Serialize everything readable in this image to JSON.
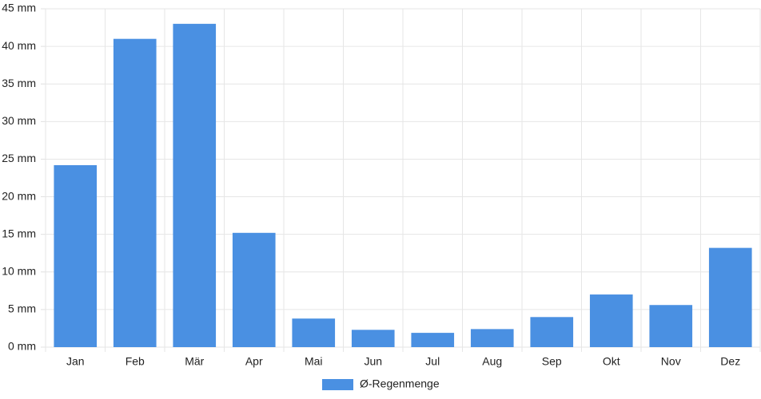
{
  "chart_data": {
    "type": "bar",
    "categories": [
      "Jan",
      "Feb",
      "Mär",
      "Apr",
      "Mai",
      "Jun",
      "Jul",
      "Aug",
      "Sep",
      "Okt",
      "Nov",
      "Dez"
    ],
    "series": [
      {
        "name": "Ø-Regenmenge",
        "color": "#4a90e2",
        "values": [
          24.2,
          41.0,
          43.0,
          15.2,
          3.8,
          2.3,
          1.9,
          2.4,
          4.0,
          7.0,
          5.6,
          13.2
        ]
      }
    ],
    "ylim": [
      0,
      45
    ],
    "yticks": [
      {
        "value": 0,
        "label": "0 mm"
      },
      {
        "value": 5,
        "label": "5 mm"
      },
      {
        "value": 10,
        "label": "10 mm"
      },
      {
        "value": 15,
        "label": "15 mm"
      },
      {
        "value": 20,
        "label": "20 mm"
      },
      {
        "value": 25,
        "label": "25 mm"
      },
      {
        "value": 30,
        "label": "30 mm"
      },
      {
        "value": 35,
        "label": "35 mm"
      },
      {
        "value": 40,
        "label": "40 mm"
      },
      {
        "value": 45,
        "label": "45 mm"
      }
    ],
    "grid": true,
    "legend": "bottom"
  }
}
